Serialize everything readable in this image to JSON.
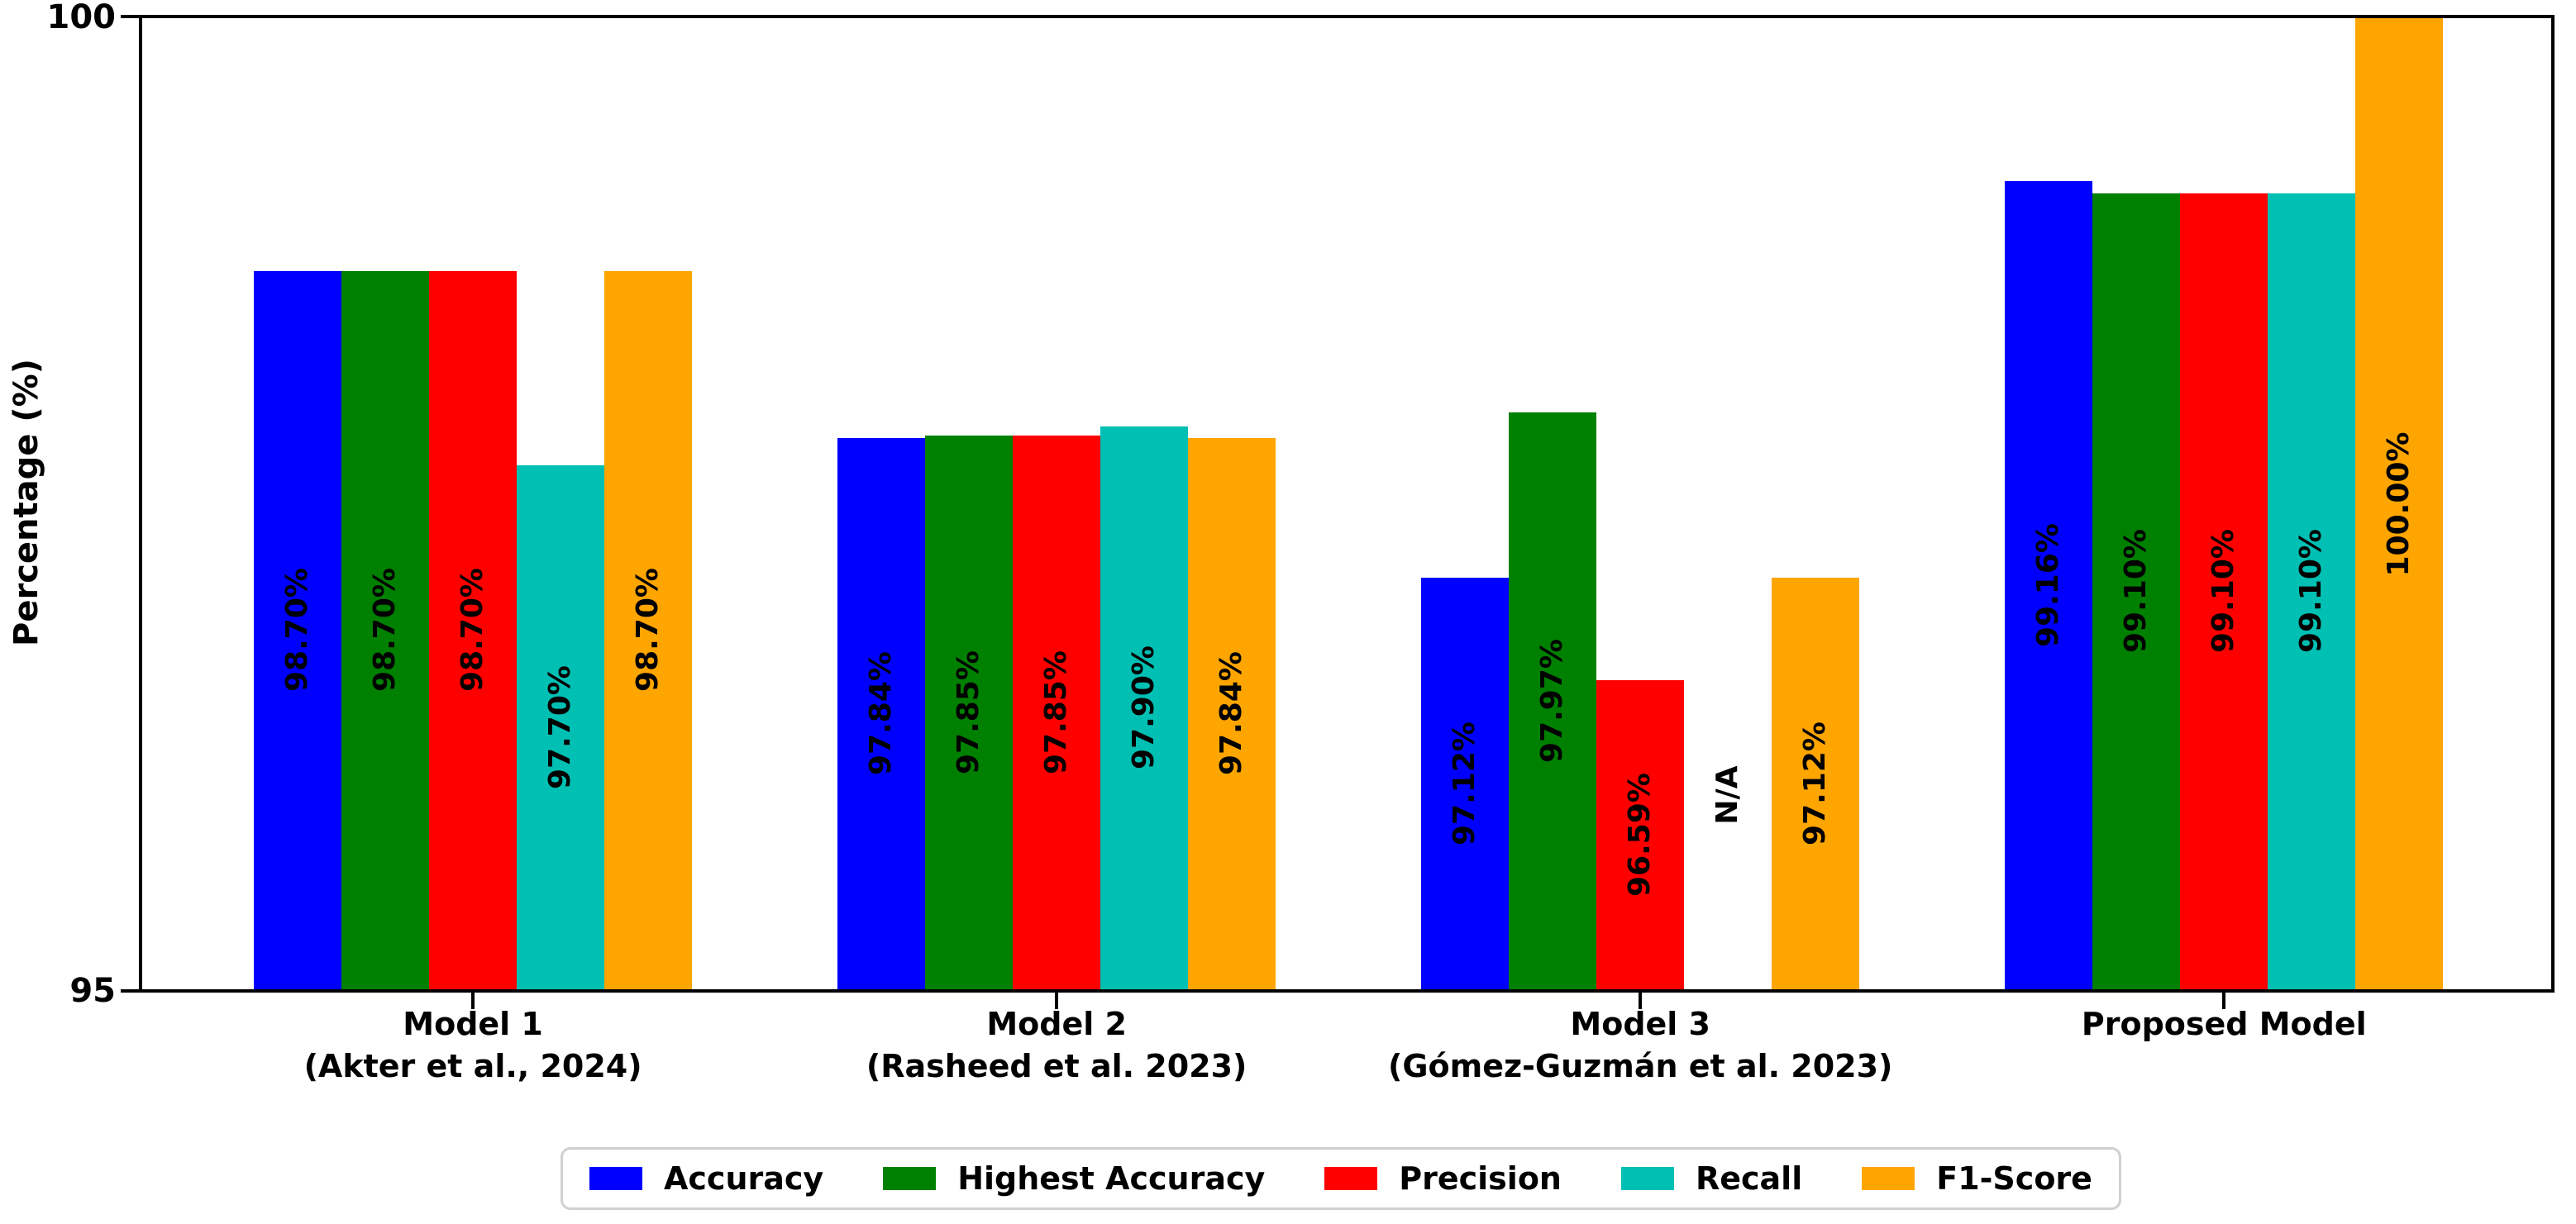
{
  "chart_data": {
    "type": "bar",
    "title": "",
    "xlabel": "",
    "ylabel": "Percentage (%)",
    "ylim": [
      95,
      100
    ],
    "yticks": [
      100,
      95
    ],
    "ytick_labels": [
      "100",
      "95"
    ],
    "grid": false,
    "legend_position": "bottom",
    "categories": [
      {
        "line1": "Model 1",
        "line2": "(Akter et al., 2024)"
      },
      {
        "line1": "Model 2",
        "line2": "(Rasheed et al. 2023)"
      },
      {
        "line1": "Model 3",
        "line2": "(Gómez-Guzmán et al. 2023)"
      },
      {
        "line1": "Proposed Model",
        "line2": ""
      }
    ],
    "series": [
      {
        "name": "Accuracy",
        "color": "#0000ff",
        "values": [
          98.7,
          97.84,
          97.12,
          99.16
        ],
        "labels": [
          "98.70%",
          "97.84%",
          "97.12%",
          "99.16%"
        ]
      },
      {
        "name": "Highest Accuracy",
        "color": "#008000",
        "values": [
          98.7,
          97.85,
          97.97,
          99.1
        ],
        "labels": [
          "98.70%",
          "97.85%",
          "97.97%",
          "99.10%"
        ]
      },
      {
        "name": "Precision",
        "color": "#ff0000",
        "values": [
          98.7,
          97.85,
          96.59,
          99.1
        ],
        "labels": [
          "98.70%",
          "97.85%",
          "96.59%",
          "99.10%"
        ]
      },
      {
        "name": "Recall",
        "color": "#00bfb3",
        "values": [
          97.7,
          97.9,
          null,
          99.1
        ],
        "labels": [
          "97.70%",
          "97.90%",
          "N/A",
          "99.10%"
        ]
      },
      {
        "name": "F1-Score",
        "color": "#ffa500",
        "values": [
          98.7,
          97.84,
          97.12,
          100.0
        ],
        "labels": [
          "98.70%",
          "97.84%",
          "97.12%",
          "100.00%"
        ]
      }
    ],
    "na_label": "N/A"
  }
}
